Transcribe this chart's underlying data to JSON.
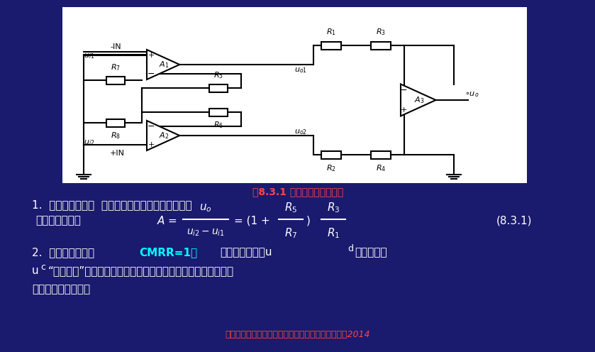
{
  "bg_color": "#1a1a6e",
  "fig_caption": "图8.3.1 测量放大器原始电路",
  "fig_caption_color": "#ff4444",
  "line1": "1.  电路结构特征：  两个同相比例电路加一个减法器",
  "line2_label": "总电压放大倍数",
  "eq_number": "(8.3.1)",
  "line3a": "2.  信号处理特征：",
  "line3b": "CMRR=1，",
  "line3c": "一放对差模信号u",
  "line3d": "d",
  "line3e": "和共模信号",
  "line4a": "u",
  "line4b": "c",
  "line4c": "“一视同仁”地加以放大，貌似公允，实质上良艘不分）共模抑制",
  "line5": "任务完全交给二放。",
  "ref_line": "《模拟电子技术简明教程》元增民，清华大学出版社2014",
  "ref_color": "#ff4444",
  "text_color": "#ffffff",
  "cmrr_color": "#00ffff"
}
